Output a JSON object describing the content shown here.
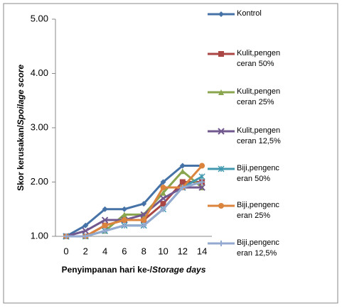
{
  "chart_data": {
    "type": "line",
    "y_label": [
      "Skor kerusakan/",
      "Spoilage score"
    ],
    "x_label": [
      "Penyimpanan hari ke-/",
      "Storage days"
    ],
    "categories": [
      "0",
      "2",
      "4",
      "6",
      "8",
      "10",
      "12",
      "14"
    ],
    "ylim": [
      1,
      5
    ],
    "yticks": [
      {
        "value": 1,
        "label": "1.00"
      },
      {
        "value": 2,
        "label": "2.00"
      },
      {
        "value": 3,
        "label": "3.00"
      },
      {
        "value": 4,
        "label": "4.00"
      },
      {
        "value": 5,
        "label": "5.00"
      }
    ],
    "legend": "right",
    "series": [
      {
        "name": "Kontrol",
        "color": "#4572a7",
        "marker": "diamond",
        "values": [
          1.0,
          1.2,
          1.5,
          1.5,
          1.6,
          2.0,
          2.3,
          2.3
        ]
      },
      {
        "name": "Kulit,pengenceran 50%",
        "color": "#aa4643",
        "marker": "square",
        "values": [
          1.0,
          1.0,
          1.2,
          1.3,
          1.3,
          1.6,
          2.0,
          2.0
        ]
      },
      {
        "name": "Kulit,pengenceran 25%",
        "color": "#89a54e",
        "marker": "triangle",
        "values": [
          1.0,
          1.0,
          1.1,
          1.4,
          1.4,
          1.8,
          2.2,
          1.9
        ]
      },
      {
        "name": "Kulit,pengenceran 12,5%",
        "color": "#71588f",
        "marker": "x",
        "values": [
          1.0,
          1.1,
          1.3,
          1.3,
          1.4,
          1.7,
          1.9,
          1.9
        ]
      },
      {
        "name": "Biji,pengenceran 50%",
        "color": "#4198af",
        "marker": "star",
        "values": [
          1.0,
          1.0,
          1.1,
          1.2,
          1.2,
          1.5,
          1.9,
          2.1
        ]
      },
      {
        "name": "Biji,pengenceran 25%",
        "color": "#db843d",
        "marker": "circle",
        "values": [
          1.0,
          1.0,
          1.2,
          1.3,
          1.3,
          1.9,
          1.9,
          2.3
        ]
      },
      {
        "name": "Biji,pengenceran 12,5%",
        "color": "#93a9cf",
        "marker": "plus",
        "values": [
          1.0,
          1.0,
          1.1,
          1.2,
          1.2,
          1.5,
          1.9,
          2.0
        ]
      }
    ]
  }
}
